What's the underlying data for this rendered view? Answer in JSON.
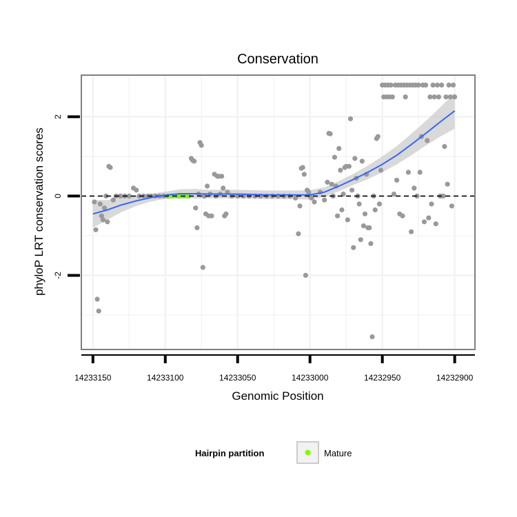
{
  "chart_data": {
    "type": "scatter",
    "title": "Conservation",
    "xlabel": "Genomic Position",
    "ylabel": "phyloP LRT conservation scores",
    "x_reversed": true,
    "xlim": [
      14233158,
      14232886
    ],
    "ylim": [
      -3.87,
      3.05
    ],
    "x_ticks": [
      14233150,
      14233100,
      14233050,
      14233000,
      14232950,
      14232900
    ],
    "x_tick_labels": [
      "14233150",
      "14233100",
      "14233050",
      "14233000",
      "14232950",
      "14232900"
    ],
    "y_ticks": [
      -2,
      0,
      2
    ],
    "y_tick_labels": [
      "-2",
      "0",
      "2"
    ],
    "grid": true,
    "reference_line_y": 0,
    "colors": {
      "points": "#999999",
      "smooth_line": "#3366FF",
      "smooth_band": "#cccccc",
      "mature": "#7fff00",
      "panel_border": "#7f7f7f",
      "grid": "#f2f2f2"
    },
    "points": [
      [
        14233149,
        -0.15
      ],
      [
        14233148,
        -0.85
      ],
      [
        14233147,
        -2.6
      ],
      [
        14233146,
        -2.9
      ],
      [
        14233145,
        -0.2
      ],
      [
        14233144,
        -0.5
      ],
      [
        14233143,
        -0.6
      ],
      [
        14233142,
        -0.3
      ],
      [
        14233141,
        0.0
      ],
      [
        14233140,
        -0.65
      ],
      [
        14233139,
        0.75
      ],
      [
        14233138,
        0.72
      ],
      [
        14233136,
        -0.1
      ],
      [
        14233134,
        0.0
      ],
      [
        14233131,
        0.0
      ],
      [
        14233128,
        0.0
      ],
      [
        14233125,
        0.0
      ],
      [
        14233122,
        0.2
      ],
      [
        14233120,
        0.15
      ],
      [
        14233118,
        0.0
      ],
      [
        14233115,
        0.0
      ],
      [
        14233112,
        0.0
      ],
      [
        14233110,
        0.0
      ],
      [
        14233107,
        0.0
      ],
      [
        14233104,
        0.0
      ],
      [
        14233101,
        0.0
      ],
      [
        14233098,
        0.0
      ],
      [
        14233095,
        0.0
      ],
      [
        14233092,
        0.0
      ],
      [
        14233090,
        0.0
      ],
      [
        14233087,
        0.0
      ],
      [
        14233084,
        0.0
      ],
      [
        14233082,
        0.95
      ],
      [
        14233081,
        0.9
      ],
      [
        14233080,
        0.88
      ],
      [
        14233079,
        -0.3
      ],
      [
        14233078,
        -0.8
      ],
      [
        14233077,
        0.05
      ],
      [
        14233076,
        1.35
      ],
      [
        14233075,
        1.28
      ],
      [
        14233074,
        -1.8
      ],
      [
        14233073,
        0.0
      ],
      [
        14233072,
        -0.45
      ],
      [
        14233071,
        0.25
      ],
      [
        14233070,
        -0.5
      ],
      [
        14233069,
        0.05
      ],
      [
        14233068,
        -0.5
      ],
      [
        14233066,
        0.55
      ],
      [
        14233065,
        0.0
      ],
      [
        14233064,
        0.5
      ],
      [
        14233063,
        0.5
      ],
      [
        14233062,
        0.05
      ],
      [
        14233061,
        0.5
      ],
      [
        14233060,
        0.2
      ],
      [
        14233059,
        -0.5
      ],
      [
        14233058,
        -0.45
      ],
      [
        14233057,
        0.1
      ],
      [
        14233054,
        0.0
      ],
      [
        14233050,
        0.0
      ],
      [
        14233046,
        0.0
      ],
      [
        14233042,
        0.0
      ],
      [
        14233038,
        0.0
      ],
      [
        14233034,
        0.0
      ],
      [
        14233030,
        0.0
      ],
      [
        14233026,
        0.0
      ],
      [
        14233022,
        0.0
      ],
      [
        14233018,
        0.0
      ],
      [
        14233014,
        0.0
      ],
      [
        14233010,
        -0.05
      ],
      [
        14233008,
        -0.95
      ],
      [
        14233007,
        -0.25
      ],
      [
        14233006,
        0.7
      ],
      [
        14233005,
        0.72
      ],
      [
        14233004,
        0.55
      ],
      [
        14233003,
        -2.0
      ],
      [
        14233002,
        0.15
      ],
      [
        14233001,
        0.1
      ],
      [
        14233000,
        0.0
      ],
      [
        14232999,
        -0.05
      ],
      [
        14232997,
        -0.15
      ],
      [
        14232993,
        0.1
      ],
      [
        14232990,
        -0.1
      ],
      [
        14232988,
        0.35
      ],
      [
        14232987,
        1.58
      ],
      [
        14232986,
        1.57
      ],
      [
        14232985,
        0.3
      ],
      [
        14232984,
        0.0
      ],
      [
        14232983,
        0.98
      ],
      [
        14232982,
        0.25
      ],
      [
        14232981,
        -0.5
      ],
      [
        14232980,
        1.2
      ],
      [
        14232979,
        0.65
      ],
      [
        14232978,
        -0.35
      ],
      [
        14232977,
        0.05
      ],
      [
        14232976,
        0.72
      ],
      [
        14232975,
        0.75
      ],
      [
        14232974,
        -0.6
      ],
      [
        14232973,
        0.75
      ],
      [
        14232972,
        1.95
      ],
      [
        14232971,
        0.15
      ],
      [
        14232970,
        -1.3
      ],
      [
        14232969,
        0.95
      ],
      [
        14232968,
        0.45
      ],
      [
        14232967,
        0.0
      ],
      [
        14232966,
        -0.2
      ],
      [
        14232965,
        -1.1
      ],
      [
        14232964,
        0.88
      ],
      [
        14232963,
        -0.75
      ],
      [
        14232962,
        -0.45
      ],
      [
        14232961,
        0.55
      ],
      [
        14232960,
        -0.8
      ],
      [
        14232959,
        -0.8
      ],
      [
        14232958,
        -1.2
      ],
      [
        14232957,
        -3.55
      ],
      [
        14232956,
        0.0
      ],
      [
        14232955,
        -0.35
      ],
      [
        14232954,
        1.45
      ],
      [
        14232953,
        1.5
      ],
      [
        14232952,
        -0.2
      ],
      [
        14232951,
        0.65
      ],
      [
        14232950,
        2.8
      ],
      [
        14232949,
        2.5
      ],
      [
        14232948,
        2.8
      ],
      [
        14232947,
        2.5
      ],
      [
        14232946,
        2.8
      ],
      [
        14232945,
        2.5
      ],
      [
        14232944,
        2.8
      ],
      [
        14232943,
        2.5
      ],
      [
        14232942,
        0.05
      ],
      [
        14232941,
        2.8
      ],
      [
        14232940,
        0.4
      ],
      [
        14232939,
        2.8
      ],
      [
        14232938,
        -0.45
      ],
      [
        14232937,
        2.8
      ],
      [
        14232936,
        -0.5
      ],
      [
        14232935,
        2.8
      ],
      [
        14232934,
        2.5
      ],
      [
        14232933,
        2.8
      ],
      [
        14232932,
        0.6
      ],
      [
        14232931,
        2.8
      ],
      [
        14232930,
        -0.9
      ],
      [
        14232929,
        2.8
      ],
      [
        14232928,
        0.2
      ],
      [
        14232927,
        2.8
      ],
      [
        14232926,
        0.0
      ],
      [
        14232925,
        2.8
      ],
      [
        14232924,
        0.6
      ],
      [
        14232923,
        1.5
      ],
      [
        14232922,
        2.8
      ],
      [
        14232921,
        -0.65
      ],
      [
        14232920,
        2.8
      ],
      [
        14232919,
        1.4
      ],
      [
        14232918,
        -0.55
      ],
      [
        14232917,
        2.5
      ],
      [
        14232916,
        -0.2
      ],
      [
        14232915,
        2.8
      ],
      [
        14232914,
        2.5
      ],
      [
        14232913,
        -0.7
      ],
      [
        14232912,
        2.8
      ],
      [
        14232911,
        2.5
      ],
      [
        14232910,
        0.0
      ],
      [
        14232909,
        2.8
      ],
      [
        14232908,
        0.0
      ],
      [
        14232907,
        1.25
      ],
      [
        14232906,
        2.5
      ],
      [
        14232905,
        0.3
      ],
      [
        14232904,
        2.8
      ],
      [
        14232903,
        2.5
      ],
      [
        14232902,
        -0.25
      ],
      [
        14232901,
        2.8
      ],
      [
        14232900,
        2.5
      ]
    ],
    "mature_points": [
      [
        14233097,
        0.0
      ],
      [
        14233094,
        0.0
      ],
      [
        14233091,
        0.0
      ],
      [
        14233088,
        0.0
      ],
      [
        14233085,
        0.0
      ]
    ],
    "smooth": {
      "x": [
        14233150,
        14233140,
        14233130,
        14233120,
        14233110,
        14233100,
        14233090,
        14233080,
        14233070,
        14233060,
        14233050,
        14233040,
        14233030,
        14233020,
        14233010,
        14233000,
        14232990,
        14232980,
        14232970,
        14232960,
        14232950,
        14232940,
        14232930,
        14232920,
        14232910,
        14232900
      ],
      "y": [
        -0.45,
        -0.35,
        -0.22,
        -0.12,
        -0.04,
        0.02,
        0.06,
        0.06,
        0.05,
        0.05,
        0.05,
        0.04,
        0.03,
        0.03,
        0.03,
        0.03,
        0.1,
        0.25,
        0.42,
        0.6,
        0.8,
        1.03,
        1.3,
        1.58,
        1.87,
        2.15
      ],
      "lower": [
        -0.8,
        -0.6,
        -0.4,
        -0.25,
        -0.14,
        -0.07,
        -0.05,
        -0.06,
        -0.06,
        -0.06,
        -0.06,
        -0.07,
        -0.08,
        -0.08,
        -0.08,
        -0.09,
        -0.02,
        0.12,
        0.28,
        0.43,
        0.6,
        0.8,
        1.03,
        1.27,
        1.5,
        1.7
      ],
      "upper": [
        -0.1,
        -0.1,
        -0.04,
        0.01,
        0.06,
        0.11,
        0.17,
        0.18,
        0.16,
        0.16,
        0.16,
        0.15,
        0.14,
        0.14,
        0.14,
        0.15,
        0.22,
        0.38,
        0.56,
        0.77,
        1.0,
        1.26,
        1.57,
        1.89,
        2.24,
        2.6
      ]
    },
    "legend": {
      "title": "Hairpin partition",
      "items": [
        {
          "label": "Mature",
          "color": "#7fff00"
        }
      ],
      "position": "bottom"
    }
  }
}
